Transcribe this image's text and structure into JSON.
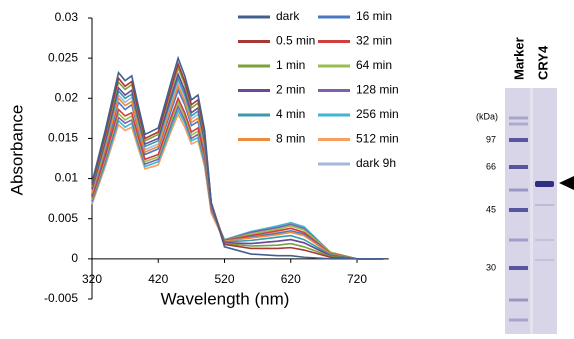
{
  "chart_data": {
    "type": "line",
    "x_label": "Wavelength (nm)",
    "y_label": "Absorbance",
    "x": [
      320,
      340,
      360,
      370,
      380,
      390,
      400,
      420,
      440,
      450,
      460,
      470,
      480,
      490,
      500,
      520,
      560,
      600,
      620,
      640,
      680,
      720,
      760
    ],
    "xlim": [
      320,
      780
    ],
    "xticks": [
      320,
      420,
      520,
      620,
      720
    ],
    "ylim": [
      -0.005,
      0.03
    ],
    "yticks": [
      -0.005,
      0,
      0.005,
      0.01,
      0.015,
      0.02,
      0.025,
      0.03
    ],
    "grid": false,
    "series": [
      {
        "name": "dark",
        "color": "#44608f",
        "values": [
          0.0095,
          0.016,
          0.0232,
          0.0222,
          0.0228,
          0.019,
          0.0155,
          0.0163,
          0.0222,
          0.025,
          0.0228,
          0.0198,
          0.0204,
          0.016,
          0.007,
          0.0015,
          0.0006,
          0.0004,
          0.0004,
          0.0002,
          0,
          0,
          0
        ]
      },
      {
        "name": "0.5  min",
        "color": "#a83838",
        "values": [
          0.0092,
          0.0155,
          0.0225,
          0.0215,
          0.0221,
          0.0184,
          0.015,
          0.0158,
          0.0215,
          0.0243,
          0.0221,
          0.0192,
          0.0198,
          0.0155,
          0.007,
          0.0018,
          0.0013,
          0.0013,
          0.0014,
          0.0011,
          0.0002,
          0,
          0
        ]
      },
      {
        "name": "1 min",
        "color": "#79a33a",
        "values": [
          0.009,
          0.0152,
          0.022,
          0.0211,
          0.0217,
          0.0181,
          0.0147,
          0.0155,
          0.0211,
          0.0238,
          0.0217,
          0.0188,
          0.0194,
          0.0152,
          0.007,
          0.0019,
          0.0016,
          0.0017,
          0.0019,
          0.0015,
          0.0003,
          0,
          0
        ]
      },
      {
        "name": "2 min",
        "color": "#6a4a98",
        "values": [
          0.0087,
          0.0147,
          0.0213,
          0.0204,
          0.021,
          0.0175,
          0.0143,
          0.015,
          0.0204,
          0.023,
          0.021,
          0.0182,
          0.0188,
          0.0147,
          0.0068,
          0.002,
          0.0019,
          0.0022,
          0.0024,
          0.002,
          0.0004,
          0,
          0
        ]
      },
      {
        "name": "4 min",
        "color": "#3b9aaa",
        "values": [
          0.0086,
          0.0144,
          0.0209,
          0.02,
          0.0205,
          0.0171,
          0.014,
          0.0147,
          0.02,
          0.0225,
          0.0205,
          0.0178,
          0.0184,
          0.0144,
          0.0068,
          0.0021,
          0.0023,
          0.0027,
          0.0029,
          0.0024,
          0.0005,
          0,
          0
        ]
      },
      {
        "name": "8 min",
        "color": "#ee8a3a",
        "values": [
          0.0082,
          0.0138,
          0.02,
          0.0191,
          0.0196,
          0.0163,
          0.0133,
          0.014,
          0.0191,
          0.0215,
          0.0196,
          0.017,
          0.0175,
          0.0138,
          0.0066,
          0.0022,
          0.0026,
          0.003,
          0.0033,
          0.0029,
          0.0006,
          0,
          0
        ]
      },
      {
        "name": "16 min",
        "color": "#4a78c6",
        "values": [
          0.008,
          0.0134,
          0.0195,
          0.0186,
          0.0192,
          0.016,
          0.013,
          0.0137,
          0.0186,
          0.021,
          0.0192,
          0.0166,
          0.0171,
          0.0134,
          0.0065,
          0.0022,
          0.0027,
          0.0032,
          0.0035,
          0.0031,
          0.0006,
          0,
          0
        ]
      },
      {
        "name": "32 min",
        "color": "#d03e3e",
        "values": [
          0.0076,
          0.0128,
          0.0186,
          0.0178,
          0.0182,
          0.0152,
          0.0124,
          0.013,
          0.0178,
          0.02,
          0.0182,
          0.0158,
          0.0163,
          0.0128,
          0.0063,
          0.0023,
          0.0029,
          0.0035,
          0.0038,
          0.0033,
          0.0007,
          0,
          0
        ]
      },
      {
        "name": "64 min",
        "color": "#98be50",
        "values": [
          0.0074,
          0.0125,
          0.0181,
          0.0173,
          0.0178,
          0.0148,
          0.0121,
          0.0127,
          0.0173,
          0.0195,
          0.0178,
          0.0154,
          0.0159,
          0.0125,
          0.0062,
          0.0023,
          0.0031,
          0.0037,
          0.0041,
          0.0036,
          0.0008,
          0,
          0
        ]
      },
      {
        "name": "128 min",
        "color": "#7f60ae",
        "values": [
          0.0072,
          0.0122,
          0.0176,
          0.0169,
          0.0173,
          0.0144,
          0.0118,
          0.0124,
          0.0169,
          0.019,
          0.0173,
          0.015,
          0.0155,
          0.0122,
          0.0061,
          0.0023,
          0.0033,
          0.0039,
          0.0043,
          0.0038,
          0.0008,
          0,
          0
        ]
      },
      {
        "name": "256 min",
        "color": "#3fb6d6",
        "values": [
          0.007,
          0.0118,
          0.0172,
          0.0164,
          0.0169,
          0.0141,
          0.0115,
          0.0121,
          0.0164,
          0.0185,
          0.0169,
          0.0147,
          0.0151,
          0.0118,
          0.006,
          0.0024,
          0.0034,
          0.0041,
          0.0045,
          0.004,
          0.0008,
          0,
          0
        ]
      },
      {
        "name": "512 min",
        "color": "#f7a05e",
        "values": [
          0.0068,
          0.0115,
          0.0167,
          0.016,
          0.0164,
          0.0137,
          0.0112,
          0.0117,
          0.016,
          0.018,
          0.0164,
          0.0143,
          0.0147,
          0.0115,
          0.0057,
          0.0021,
          0.0029,
          0.0034,
          0.0038,
          0.0033,
          0.0007,
          0,
          0
        ]
      },
      {
        "name": "dark 9h",
        "color": "#a3b8de",
        "values": [
          0.0084,
          0.0141,
          0.0204,
          0.0195,
          0.0201,
          0.0167,
          0.0136,
          0.0143,
          0.0195,
          0.022,
          0.0201,
          0.0174,
          0.018,
          0.0141,
          0.0066,
          0.0019,
          0.0019,
          0.0022,
          0.0024,
          0.002,
          0.0004,
          0,
          0
        ]
      }
    ]
  },
  "gel": {
    "lanes": [
      "Marker",
      "CRY4"
    ],
    "size_unit": "(kDa)",
    "marker_sizes": [
      97,
      66,
      45,
      30
    ]
  }
}
